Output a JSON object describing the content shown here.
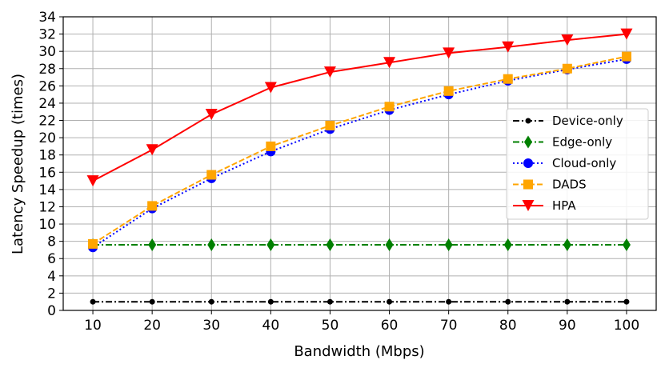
{
  "chart_data": {
    "type": "line",
    "xlabel": "Bandwidth (Mbps)",
    "ylabel": "Latency Speedup (times)",
    "x": [
      10,
      20,
      30,
      40,
      50,
      60,
      70,
      80,
      90,
      100
    ],
    "xlim": [
      5,
      105
    ],
    "ylim": [
      0,
      34
    ],
    "yticks": [
      0,
      2,
      4,
      6,
      8,
      10,
      12,
      14,
      16,
      18,
      20,
      22,
      24,
      26,
      28,
      30,
      32,
      34
    ],
    "grid": true,
    "legend_position": "center-right",
    "series": [
      {
        "name": "Device-only",
        "color": "#000000",
        "marker": "point",
        "linestyle": "dashdot",
        "values": [
          1,
          1,
          1,
          1,
          1,
          1,
          1,
          1,
          1,
          1
        ]
      },
      {
        "name": "Edge-only",
        "color": "#008000",
        "marker": "thin-diamond",
        "linestyle": "dashdot",
        "values": [
          7.6,
          7.6,
          7.6,
          7.6,
          7.6,
          7.6,
          7.6,
          7.6,
          7.6,
          7.6
        ]
      },
      {
        "name": "Cloud-only",
        "color": "#0000ff",
        "marker": "circle",
        "linestyle": "dotted",
        "values": [
          7.3,
          11.8,
          15.3,
          18.4,
          21.0,
          23.2,
          25.0,
          26.6,
          27.9,
          29.1
        ]
      },
      {
        "name": "DADS",
        "color": "#ffa500",
        "marker": "square",
        "linestyle": "dashed",
        "values": [
          7.7,
          12.1,
          15.7,
          19.0,
          21.4,
          23.6,
          25.4,
          26.8,
          28.0,
          29.4
        ]
      },
      {
        "name": "HPA",
        "color": "#ff0000",
        "marker": "triangle-down",
        "linestyle": "solid",
        "values": [
          15.0,
          18.6,
          22.7,
          25.8,
          27.6,
          28.7,
          29.8,
          30.5,
          31.3,
          32.0
        ]
      }
    ]
  }
}
